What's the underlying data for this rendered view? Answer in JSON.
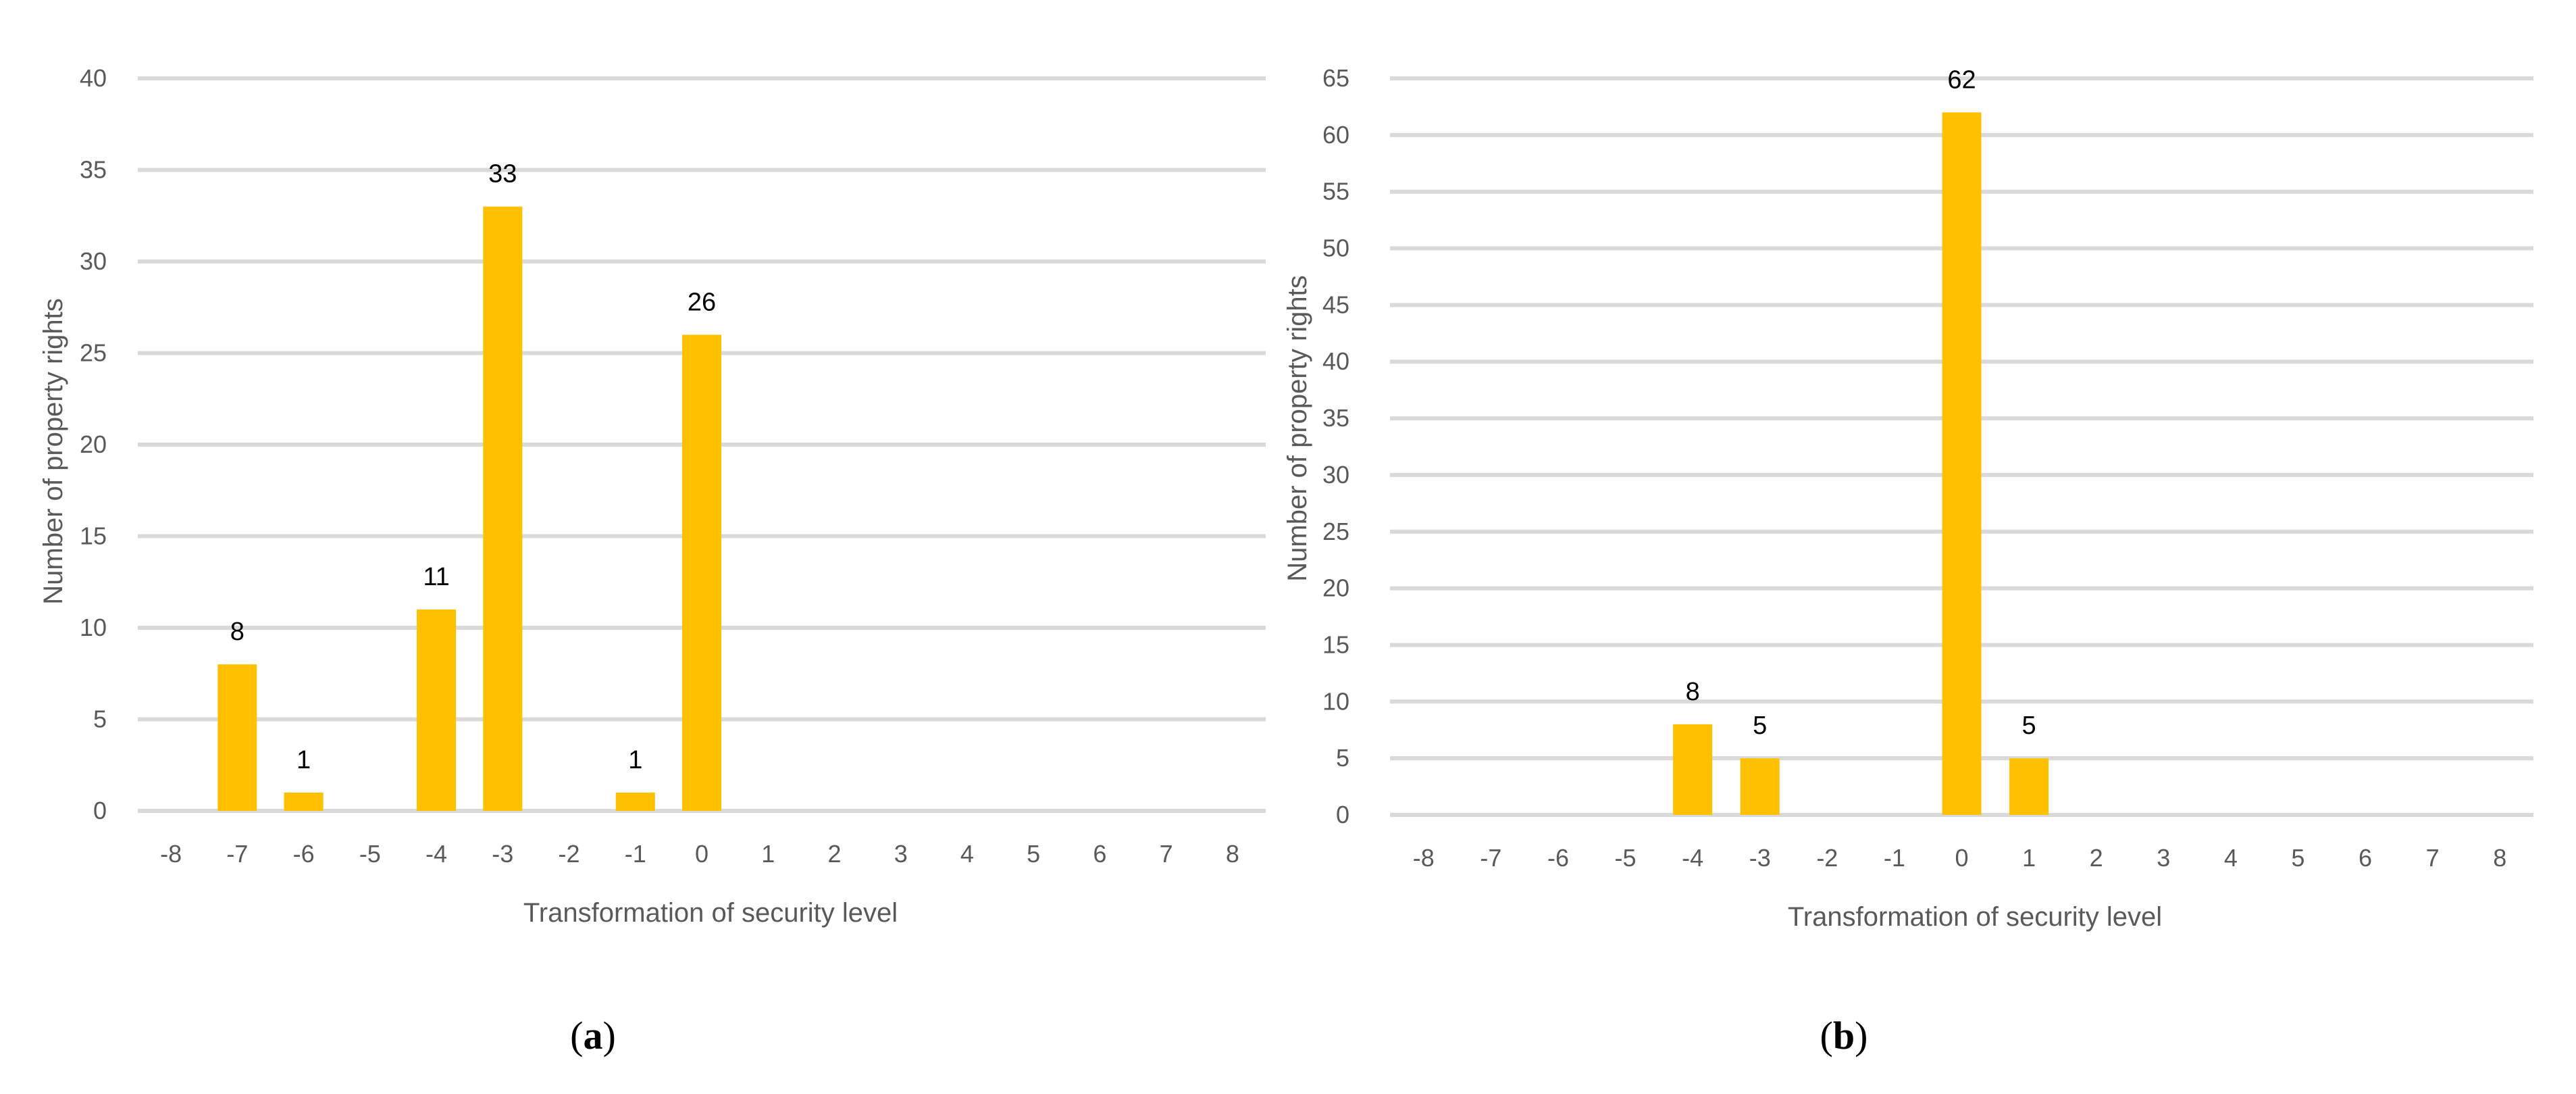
{
  "chart_data": [
    {
      "type": "bar",
      "panel_label": "a",
      "title": "",
      "xlabel": "Transformation of security level",
      "ylabel": "Number of property rights",
      "x": [
        -8,
        -7,
        -6,
        -5,
        -4,
        -3,
        -2,
        -1,
        0,
        1,
        2,
        3,
        4,
        5,
        6,
        7,
        8
      ],
      "x_tick_labels": [
        "-8",
        "-7",
        "-6",
        "-5",
        "-4",
        "-3",
        "-2",
        "-1",
        "0",
        "1",
        "2",
        "3",
        "4",
        "5",
        "6",
        "7",
        "8"
      ],
      "values": [
        0,
        8,
        1,
        0,
        11,
        33,
        0,
        1,
        26,
        0,
        0,
        0,
        0,
        0,
        0,
        0,
        0
      ],
      "data_labels": [
        "",
        "8",
        "1",
        "",
        "11",
        "33",
        "",
        "1",
        "26",
        "",
        "",
        "",
        "",
        "",
        "",
        "",
        ""
      ],
      "ylim": [
        0,
        40
      ],
      "y_ticks": [
        0,
        5,
        10,
        15,
        20,
        25,
        30,
        35,
        40
      ],
      "y_tick_labels": [
        "0",
        "5",
        "10",
        "15",
        "20",
        "25",
        "30",
        "35",
        "40"
      ],
      "grid": true,
      "legend": "none",
      "bar_color": "#ffc000"
    },
    {
      "type": "bar",
      "panel_label": "b",
      "title": "",
      "xlabel": "Transformation of security level",
      "ylabel": "Number of property rights",
      "x": [
        -8,
        -7,
        -6,
        -5,
        -4,
        -3,
        -2,
        -1,
        0,
        1,
        2,
        3,
        4,
        5,
        6,
        7,
        8
      ],
      "x_tick_labels": [
        "-8",
        "-7",
        "-6",
        "-5",
        "-4",
        "-3",
        "-2",
        "-1",
        "0",
        "1",
        "2",
        "3",
        "4",
        "5",
        "6",
        "7",
        "8"
      ],
      "values": [
        0,
        0,
        0,
        0,
        8,
        5,
        0,
        0,
        62,
        5,
        0,
        0,
        0,
        0,
        0,
        0,
        0
      ],
      "data_labels": [
        "",
        "",
        "",
        "",
        "8",
        "5",
        "",
        "",
        "62",
        "5",
        "",
        "",
        "",
        "",
        "",
        "",
        ""
      ],
      "ylim": [
        0,
        65
      ],
      "y_ticks": [
        0,
        5,
        10,
        15,
        20,
        25,
        30,
        35,
        40,
        45,
        50,
        55,
        60,
        65
      ],
      "y_tick_labels": [
        "0",
        "5",
        "10",
        "15",
        "20",
        "25",
        "30",
        "35",
        "40",
        "45",
        "50",
        "55",
        "60",
        "65"
      ],
      "grid": true,
      "legend": "none",
      "bar_color": "#ffc000"
    }
  ]
}
